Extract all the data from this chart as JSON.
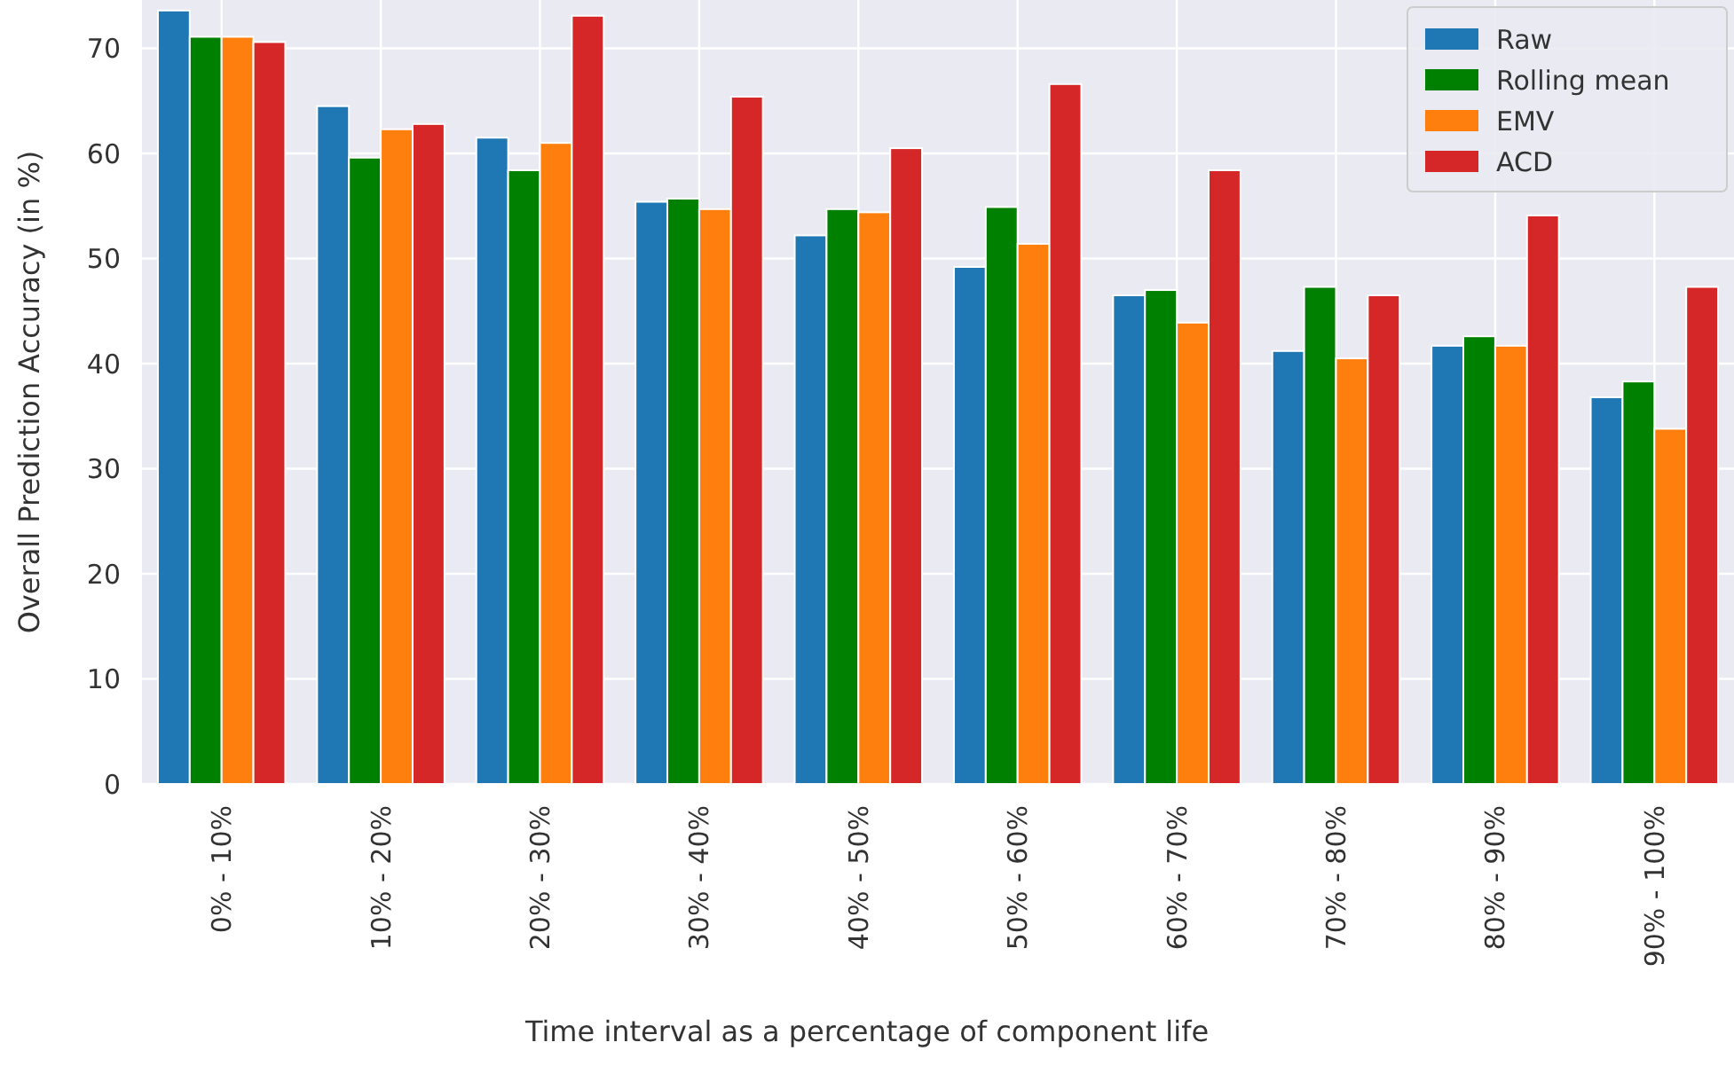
{
  "chart_data": {
    "type": "bar",
    "xlabel": "Time interval as a percentage of component life",
    "ylabel": "Overall Prediction Accuracy (in %)",
    "categories": [
      "0% - 10%",
      "10% - 20%",
      "20% - 30%",
      "30% - 40%",
      "40% - 50%",
      "50% - 60%",
      "60% - 70%",
      "70% - 80%",
      "80% - 90%",
      "90% - 100%"
    ],
    "series": [
      {
        "name": "Raw",
        "color": "#1f77b4",
        "values": [
          73.6,
          64.5,
          61.5,
          55.4,
          52.2,
          49.2,
          46.5,
          41.2,
          41.7,
          36.8
        ]
      },
      {
        "name": "Rolling mean",
        "color": "#008000",
        "values": [
          71.1,
          59.6,
          58.4,
          55.7,
          54.7,
          54.9,
          47.0,
          47.3,
          42.6,
          38.3
        ]
      },
      {
        "name": "EMV",
        "color": "#ff7f0e",
        "values": [
          71.1,
          62.3,
          61.0,
          54.7,
          54.4,
          51.4,
          43.9,
          40.5,
          41.7,
          33.8
        ]
      },
      {
        "name": "ACD",
        "color": "#d62728",
        "values": [
          70.6,
          62.8,
          73.1,
          65.4,
          60.5,
          66.6,
          58.4,
          46.5,
          54.1,
          47.3
        ]
      }
    ],
    "ylim": [
      0,
      74.6
    ],
    "yticks": [
      0,
      10,
      20,
      30,
      40,
      50,
      60,
      70
    ],
    "grid": true,
    "legend": "top right"
  }
}
